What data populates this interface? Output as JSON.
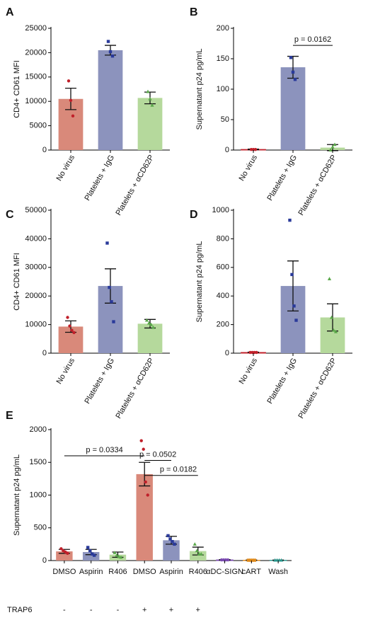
{
  "chart_data": [
    {
      "type": "bar",
      "panel": "A",
      "ylabel": "CD4+ CD61 MFI",
      "categories": [
        "No virus",
        "Platelets + IgG",
        "Platelets + αCD62P"
      ],
      "values": [
        10500,
        20500,
        10700
      ],
      "errors": [
        2200,
        1000,
        1200
      ],
      "points": [
        [
          14200,
          10200,
          7000
        ],
        [
          22300,
          20200,
          19300
        ],
        [
          12000,
          10500,
          9200
        ]
      ],
      "colors": [
        "#d9897a",
        "#8c93bd",
        "#b5d99c"
      ],
      "point_colors": [
        "#c0202a",
        "#2a3a9a",
        "#5aa84a"
      ],
      "ylim": [
        0,
        25000
      ],
      "yticks": [
        0,
        5000,
        10000,
        15000,
        20000,
        25000
      ]
    },
    {
      "type": "bar",
      "panel": "B",
      "ylabel": "Supernatant p24 pg/mL",
      "categories": [
        "No virus",
        "Platelets + IgG",
        "Platelets + αCD62P"
      ],
      "values": [
        1,
        136,
        4
      ],
      "errors": [
        0.5,
        18,
        5
      ],
      "points": [
        [
          1,
          1,
          1
        ],
        [
          152,
          128,
          116
        ],
        [
          0,
          5,
          9
        ]
      ],
      "colors": [
        "#d9897a",
        "#8c93bd",
        "#b5d99c"
      ],
      "point_colors": [
        "#c0202a",
        "#2a3a9a",
        "#5aa84a"
      ],
      "ylim": [
        0,
        200
      ],
      "yticks": [
        0,
        50,
        100,
        150,
        200
      ],
      "annotations": [
        {
          "text": "p = 0.0162",
          "from": 1,
          "to": 2,
          "y": 172
        }
      ]
    },
    {
      "type": "bar",
      "panel": "C",
      "ylabel": "CD4+ CD61 MFI",
      "categories": [
        "No virus",
        "Platelets + IgG",
        "Platelets + αCD62P"
      ],
      "values": [
        9300,
        23500,
        10300
      ],
      "errors": [
        2000,
        6000,
        1500
      ],
      "points": [
        [
          12500,
          9500,
          8000,
          7200
        ],
        [
          38500,
          23000,
          18000,
          11000
        ],
        [
          11500,
          10500,
          10000,
          9000
        ]
      ],
      "colors": [
        "#d9897a",
        "#8c93bd",
        "#b5d99c"
      ],
      "point_colors": [
        "#c0202a",
        "#2a3a9a",
        "#5aa84a"
      ],
      "ylim": [
        0,
        50000
      ],
      "yticks": [
        0,
        10000,
        20000,
        30000,
        40000,
        50000
      ]
    },
    {
      "type": "bar",
      "panel": "D",
      "ylabel": "Supernatant p24 pg/mL",
      "categories": [
        "No virus",
        "Platelets + IgG",
        "Platelets + αCD62P"
      ],
      "values": [
        5,
        470,
        250
      ],
      "errors": [
        2,
        175,
        95
      ],
      "points": [
        [
          5,
          5,
          5,
          5
        ],
        [
          930,
          550,
          330,
          230
        ],
        [
          520,
          250,
          160,
          150
        ]
      ],
      "colors": [
        "#d9897a",
        "#8c93bd",
        "#b5d99c"
      ],
      "point_colors": [
        "#c0202a",
        "#2a3a9a",
        "#5aa84a"
      ],
      "ylim": [
        0,
        1000
      ],
      "yticks": [
        0,
        200,
        400,
        600,
        800,
        1000
      ]
    },
    {
      "type": "bar",
      "panel": "E",
      "ylabel": "Supernatant p24 pg/mL",
      "categories": [
        "DMSO",
        "Aspirin",
        "R406",
        "DMSO",
        "Aspirin",
        "R406",
        "αDC-SIGN",
        "cART",
        "Wash"
      ],
      "row_label": "TRAP6",
      "row": [
        "-",
        "-",
        "-",
        "+",
        "+",
        "+",
        null,
        null,
        null
      ],
      "values": [
        140,
        130,
        90,
        1320,
        310,
        145,
        10,
        5,
        5
      ],
      "errors": [
        30,
        40,
        40,
        180,
        60,
        60,
        5,
        3,
        3
      ],
      "points": [
        [
          180,
          150,
          130,
          110
        ],
        [
          200,
          150,
          100,
          80
        ],
        [
          120,
          80,
          60,
          50
        ],
        [
          1830,
          1700,
          1200,
          1000
        ],
        [
          380,
          330,
          290,
          250
        ],
        [
          250,
          150,
          100,
          100
        ],
        [
          10,
          10,
          10,
          10
        ],
        [
          5,
          5,
          5,
          5
        ],
        [
          5,
          5,
          5,
          5
        ]
      ],
      "colors": [
        "#d9897a",
        "#8c93bd",
        "#b5d99c",
        "#d9897a",
        "#8c93bd",
        "#b5d99c",
        "#b9a3d6",
        "#f2c48a",
        "#8fcfc8"
      ],
      "point_colors": [
        "#c0202a",
        "#2a3a9a",
        "#5aa84a",
        "#c0202a",
        "#2a3a9a",
        "#5aa84a",
        "#7a4ab0",
        "#e08a1a",
        "#2a9a90"
      ],
      "ylim": [
        0,
        2000
      ],
      "yticks": [
        0,
        500,
        1000,
        1500,
        2000
      ],
      "annotations": [
        {
          "text": "p = 0.0334",
          "from": 0,
          "to": 3,
          "y": 1600
        },
        {
          "text": "p = 0.0502",
          "from": 3,
          "to": 4,
          "y": 1530
        },
        {
          "text": "p = 0.0182",
          "from": 3,
          "to": 5,
          "y": 1300
        }
      ]
    }
  ]
}
